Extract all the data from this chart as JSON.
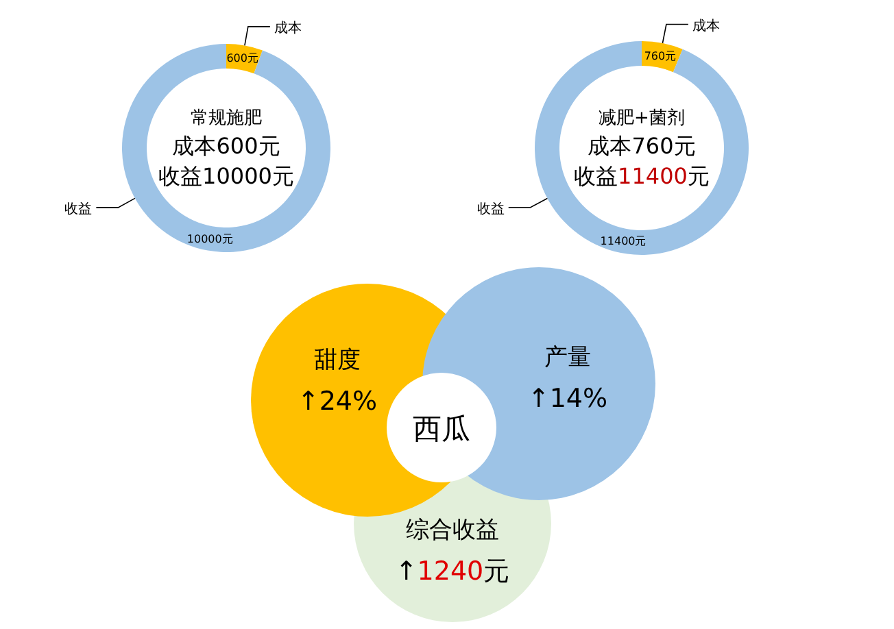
{
  "chart_data": [
    {
      "type": "donut",
      "title": "常规施肥",
      "categories": [
        "成本",
        "收益"
      ],
      "values": [
        600,
        10000
      ],
      "colors": [
        "#ffc000",
        "#9dc3e6"
      ],
      "value_labels": [
        "600元",
        "10000元"
      ],
      "annotations": [
        "成本600元",
        "收益10000元"
      ]
    },
    {
      "type": "donut",
      "title": "减肥+菌剂",
      "categories": [
        "成本",
        "收益"
      ],
      "values": [
        760,
        11400
      ],
      "colors": [
        "#ffc000",
        "#9dc3e6"
      ],
      "value_labels": [
        "760元",
        "11400元"
      ],
      "annotations": [
        "成本760元",
        "收益**11400**元"
      ]
    },
    {
      "type": "other",
      "title": "西瓜",
      "categories": [
        "甜度",
        "产量",
        "综合收益"
      ],
      "colors": [
        "#ffc000",
        "#9dc3e6",
        "#e2efda"
      ],
      "annotations": [
        "↑24%",
        "↑14%",
        "↑**1240**元"
      ]
    }
  ]
}
